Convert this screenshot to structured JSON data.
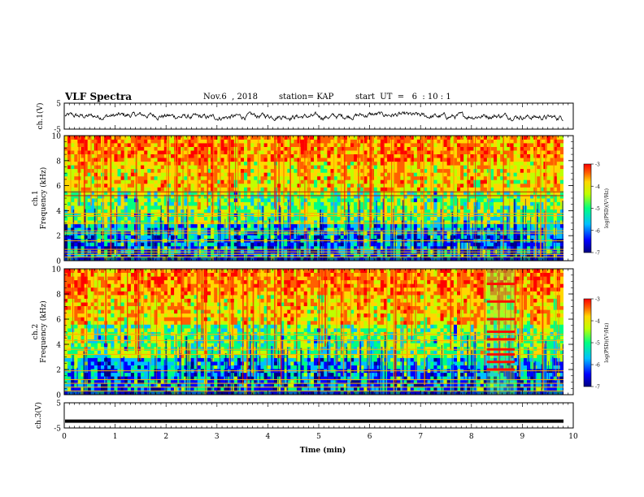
{
  "header": {
    "title": "VLF Spectra",
    "date": "Nov.6  , 2018",
    "station": "station= KAP",
    "start_ut": "start  UT  =   6  : 10 : 1"
  },
  "chart_data": [
    {
      "type": "line",
      "panel": "ch1-waveform",
      "ylabel": "ch.1(V)",
      "ylim": [
        -5,
        5
      ],
      "yticks": [
        "5",
        "-5"
      ],
      "xlim": [
        0,
        10
      ],
      "x_unit": "min",
      "series": [
        {
          "values_description_none": null,
          "approx_range": [
            -1.6,
            1.3
          ]
        }
      ]
    },
    {
      "type": "heatmap",
      "panel": "ch1-spectrogram",
      "ylabel_top": "ch.1",
      "ylabel": "Frequency (kHz)",
      "ylim": [
        0,
        10
      ],
      "yticks": [
        "0",
        "2",
        "4",
        "6",
        "8",
        "10"
      ],
      "xlim": [
        0,
        9.85
      ],
      "color_scale": {
        "label": "log(PSD)(V²/Hz)",
        "range": [
          -7,
          -3
        ],
        "ticks": [
          "-3",
          "-4",
          "-5",
          "-6",
          "-7"
        ],
        "colormap": [
          "#000080",
          "#0000ff",
          "#00bfff",
          "#00ff80",
          "#bfff00",
          "#ffd700",
          "#ff6000",
          "#ff0000"
        ]
      },
      "narrowband_lines_khz": [
        0.3,
        0.5,
        0.7,
        0.9,
        1.6,
        2.2,
        2.4,
        3.0,
        3.6,
        3.8,
        5.2,
        5.5
      ],
      "noise_band_khz": [
        8,
        10
      ]
    },
    {
      "type": "heatmap",
      "panel": "ch2-spectrogram",
      "ylabel_top": "ch.2",
      "ylabel": "Frequency (kHz)",
      "ylim": [
        0,
        10
      ],
      "yticks": [
        "0",
        "2",
        "4",
        "6",
        "8",
        "10"
      ],
      "xlim": [
        0,
        9.85
      ],
      "color_scale": {
        "label": "log(PSD)(V²/Hz)",
        "range": [
          -7,
          -3
        ],
        "ticks": [
          "-3",
          "-4",
          "-5",
          "-6",
          "-7"
        ]
      },
      "narrowband_lines_khz": [
        0.3,
        0.6,
        0.9,
        1.2,
        1.9,
        3.2,
        3.6,
        4.3,
        4.8
      ],
      "burst_window_min": [
        8.3,
        8.85
      ],
      "burst_lines_khz": [
        2.0,
        2.6,
        3.2,
        3.6,
        4.4,
        5.0,
        6.0,
        7.4,
        8.8
      ]
    },
    {
      "type": "line",
      "panel": "ch3-waveform",
      "ylabel": "ch.3(V)",
      "ylim": [
        -5,
        5
      ],
      "yticks": [
        "5",
        "-5"
      ],
      "series": [
        {
          "values": [
            -2.3,
            -2.3
          ]
        }
      ]
    }
  ],
  "xaxis": {
    "label": "Time  (min)",
    "ticks": [
      "0",
      "1",
      "2",
      "3",
      "4",
      "5",
      "6",
      "7",
      "8",
      "9",
      "10"
    ],
    "range": [
      0,
      10
    ]
  }
}
